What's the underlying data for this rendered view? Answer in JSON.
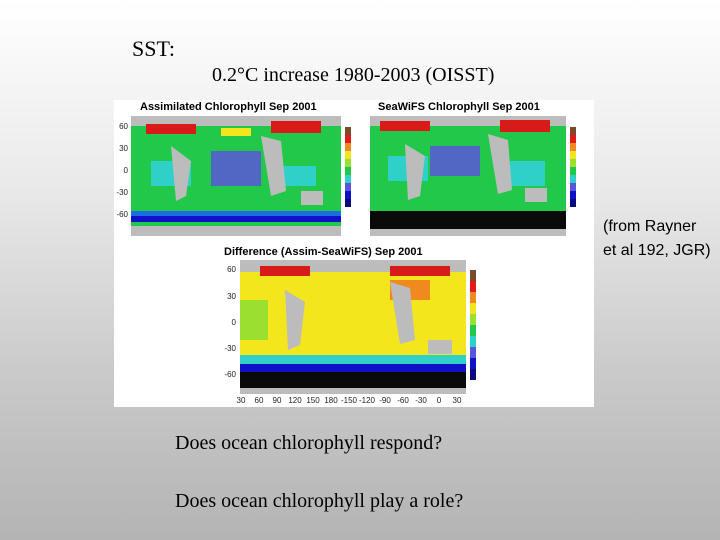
{
  "slide": {
    "heading": "SST:",
    "subheading": "0.2°C increase 1980-2003 (OISST)",
    "citation": "(from Rayner et al 192, JGR)",
    "question_1": "Does ocean chlorophyll respond?",
    "question_2": "Does ocean chlorophyll play a role?"
  },
  "figure": {
    "panels": [
      {
        "title": "Assimilated Chlorophyll Sep 2001",
        "y_ticks": [
          "60",
          "30",
          "0",
          "-30",
          "-60"
        ]
      },
      {
        "title": "SeaWiFS Chlorophyll Sep 2001"
      },
      {
        "title": "Difference (Assim-SeaWiFS) Sep 2001",
        "y_ticks": [
          "60",
          "30",
          "0",
          "-30",
          "-60"
        ],
        "x_ticks": [
          "30",
          "60",
          "90",
          "120",
          "150",
          "180",
          "-150",
          "-120",
          "-90",
          "-60",
          "-30",
          "0",
          "30"
        ]
      }
    ],
    "colors": {
      "ocean_green": "#22c84a",
      "ocean_cyan": "#2fd0c8",
      "ocean_blue": "#5b56d8",
      "high_red": "#d81a18",
      "yellow": "#f4e61c",
      "land": "#bcbcbc",
      "ice": "#0a0a0a",
      "deep_blue": "#1010c8"
    }
  }
}
